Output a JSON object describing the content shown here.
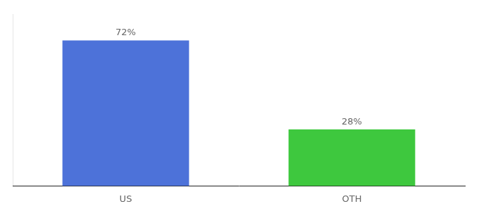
{
  "chart_data": {
    "type": "bar",
    "categories": [
      "US",
      "OTH"
    ],
    "values": [
      72,
      28
    ],
    "value_labels": [
      "72%",
      "28%"
    ],
    "colors": [
      "#4d72d9",
      "#3ec83e"
    ],
    "ylim": [
      0,
      85
    ],
    "grid": false,
    "data_labels": true,
    "tick_labels": "x"
  }
}
